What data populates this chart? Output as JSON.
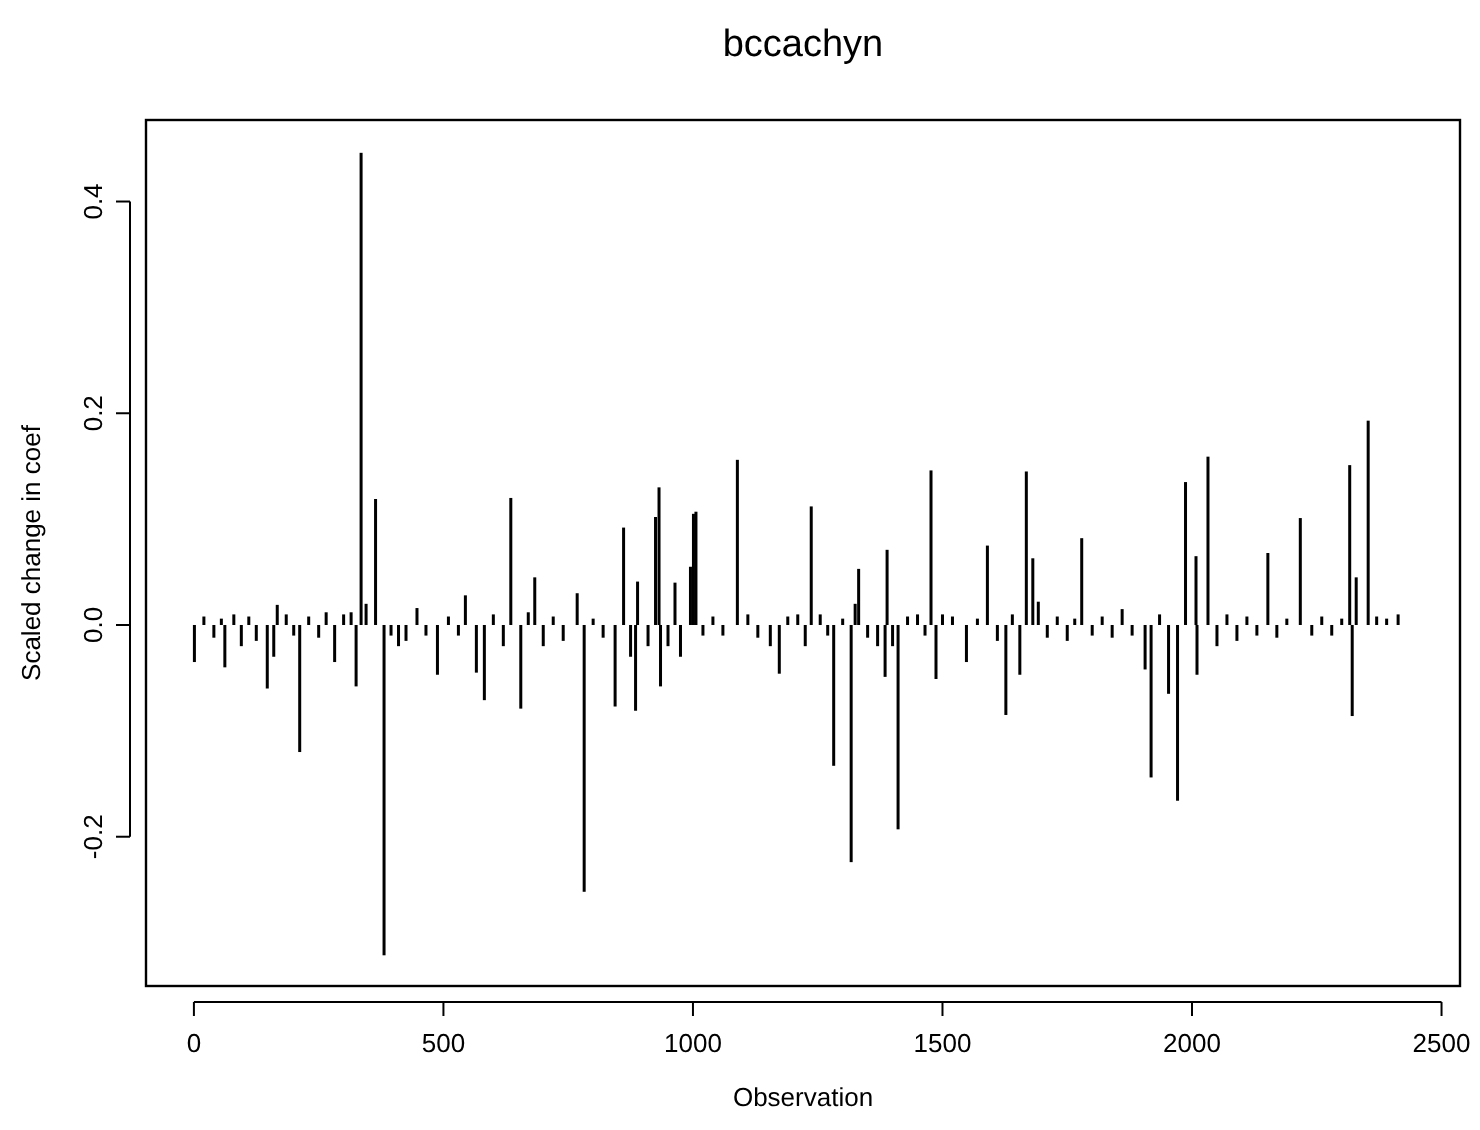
{
  "chart_data": {
    "type": "bar",
    "title": "bccachyn",
    "xlabel": "Observation",
    "ylabel": "Scaled change in coef",
    "color": "#000000",
    "xlim": [
      -96,
      2537
    ],
    "xticks": [
      0,
      500,
      1000,
      1500,
      2000,
      2500
    ],
    "ylim": [
      -0.341,
      0.477
    ],
    "yticks": [
      {
        "value": -0.2,
        "label": "-0.2"
      },
      {
        "value": 0,
        "label": "0.0"
      },
      {
        "value": 0.2,
        "label": "0.2"
      },
      {
        "value": 0.4,
        "label": "0.4"
      }
    ],
    "x": [
      1,
      20,
      40,
      55,
      62,
      80,
      95,
      110,
      125,
      147,
      160,
      167,
      185,
      200,
      212,
      230,
      250,
      265,
      282,
      300,
      315,
      325,
      335,
      345,
      364,
      381,
      395,
      410,
      425,
      447,
      465,
      488,
      510,
      530,
      544,
      566,
      582,
      600,
      620,
      635,
      655,
      670,
      683,
      700,
      720,
      740,
      768,
      782,
      800,
      820,
      844,
      861,
      875,
      885,
      889,
      910,
      925,
      932,
      935,
      950,
      964,
      975,
      995,
      1001,
      1006,
      1020,
      1040,
      1060,
      1089,
      1110,
      1130,
      1155,
      1173,
      1190,
      1210,
      1225,
      1237,
      1255,
      1270,
      1282,
      1300,
      1317,
      1325,
      1332,
      1350,
      1370,
      1385,
      1389,
      1400,
      1411,
      1430,
      1450,
      1465,
      1477,
      1487,
      1500,
      1520,
      1548,
      1570,
      1590,
      1610,
      1627,
      1640,
      1655,
      1668,
      1681,
      1692,
      1710,
      1730,
      1750,
      1765,
      1779,
      1800,
      1820,
      1840,
      1860,
      1880,
      1906,
      1918,
      1935,
      1953,
      1971,
      1987,
      2008,
      2010,
      2032,
      2050,
      2070,
      2090,
      2110,
      2130,
      2152,
      2170,
      2190,
      2217,
      2240,
      2260,
      2280,
      2300,
      2316,
      2321,
      2329,
      2353,
      2370,
      2390,
      2413
    ],
    "values": [
      -0.035,
      0.008,
      -0.012,
      0.006,
      -0.04,
      0.01,
      -0.02,
      0.008,
      -0.015,
      -0.06,
      -0.03,
      0.019,
      0.01,
      -0.01,
      -0.12,
      0.008,
      -0.012,
      0.012,
      -0.035,
      0.01,
      0.012,
      -0.058,
      0.446,
      0.02,
      0.119,
      -0.312,
      -0.01,
      -0.02,
      -0.015,
      0.016,
      -0.01,
      -0.047,
      0.008,
      -0.01,
      0.028,
      -0.045,
      -0.071,
      0.01,
      -0.02,
      0.12,
      -0.079,
      0.012,
      0.045,
      -0.02,
      0.008,
      -0.015,
      0.03,
      -0.252,
      0.006,
      -0.012,
      -0.077,
      0.092,
      -0.03,
      -0.081,
      0.041,
      -0.02,
      0.102,
      0.13,
      -0.058,
      -0.02,
      0.04,
      -0.03,
      0.055,
      0.105,
      0.107,
      -0.01,
      0.008,
      -0.01,
      0.156,
      0.01,
      -0.012,
      -0.02,
      -0.046,
      0.008,
      0.01,
      -0.02,
      0.112,
      0.01,
      -0.01,
      -0.133,
      0.006,
      -0.224,
      0.02,
      0.053,
      -0.012,
      -0.02,
      -0.049,
      0.071,
      -0.02,
      -0.193,
      0.008,
      0.01,
      -0.01,
      0.146,
      -0.051,
      0.01,
      0.008,
      -0.035,
      0.006,
      0.075,
      -0.015,
      -0.085,
      0.01,
      -0.047,
      0.145,
      0.063,
      0.022,
      -0.012,
      0.008,
      -0.015,
      0.006,
      0.082,
      -0.01,
      0.008,
      -0.012,
      0.015,
      -0.01,
      -0.042,
      -0.144,
      0.01,
      -0.065,
      -0.166,
      0.135,
      0.065,
      -0.047,
      0.159,
      -0.02,
      0.01,
      -0.015,
      0.008,
      -0.01,
      0.068,
      -0.012,
      0.006,
      0.101,
      -0.01,
      0.008,
      -0.01,
      0.006,
      0.151,
      -0.086,
      0.045,
      0.193,
      0.008,
      0.006,
      0.01
    ]
  }
}
